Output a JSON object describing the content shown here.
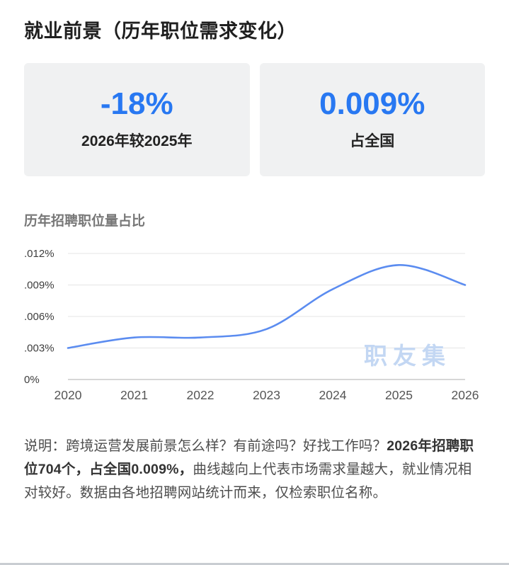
{
  "page": {
    "title": "就业前景（历年职位需求变化）"
  },
  "stats": {
    "yoy": {
      "value": "-18%",
      "label": "2026年较2025年"
    },
    "share": {
      "value": "0.009%",
      "label": "占全国"
    }
  },
  "chart": {
    "section_title": "历年招聘职位量占比",
    "watermark": "职友集"
  },
  "chart_data": {
    "type": "line",
    "title": "历年招聘职位量占比",
    "x": [
      "2020",
      "2021",
      "2022",
      "2023",
      "2024",
      "2025",
      "2026"
    ],
    "values": [
      0.003,
      0.004,
      0.004,
      0.0048,
      0.0086,
      0.0109,
      0.009
    ],
    "unit": "%",
    "ylim": [
      0,
      0.012
    ],
    "yticks": [
      {
        "value": 0.012,
        "label": ".012%"
      },
      {
        "value": 0.009,
        "label": ".009%"
      },
      {
        "value": 0.006,
        "label": ".006%"
      },
      {
        "value": 0.003,
        "label": ".003%"
      },
      {
        "value": 0,
        "label": "0%"
      }
    ],
    "grid": true,
    "legend": false,
    "line_color": "#5b8cf0"
  },
  "description": {
    "lead": "说明：跨境运营发展前景怎么样？有前途吗？好找工作吗？",
    "highlight": "2026年招聘职位704个，占全国0.009%，",
    "rest": "曲线越向上代表市场需求量越大，就业情况相对较好。数据由各地招聘网站统计而来，仅检索职位名称。"
  },
  "colors": {
    "accent_blue": "#2878f2",
    "line_blue": "#5b8cf0",
    "watermark_blue": "#c3d7f3",
    "card_bg": "#f0f1f2"
  }
}
